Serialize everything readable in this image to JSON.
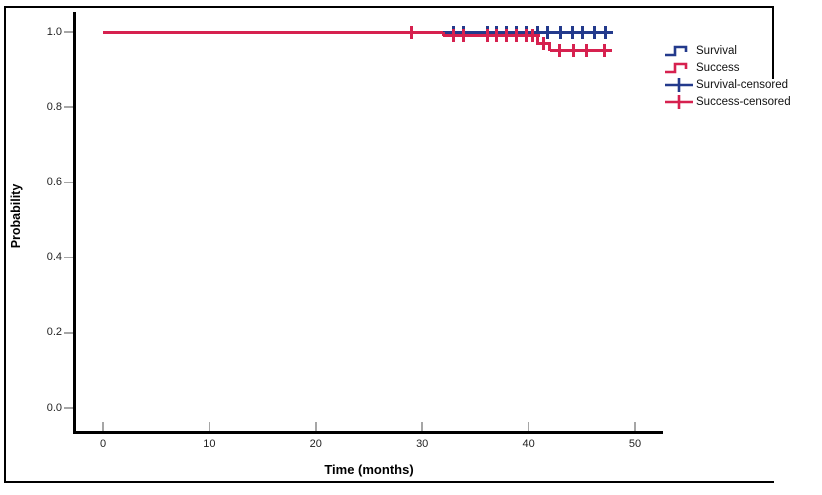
{
  "figure": {
    "background": "#ffffff",
    "frame_color": "#000000"
  },
  "chart_data": {
    "type": "line",
    "subtype": "kaplan-meier-step",
    "title": "",
    "xlabel": "Time (months)",
    "ylabel": "Probability",
    "xlim": [
      0,
      50
    ],
    "ylim": [
      0.0,
      1.0
    ],
    "grid": false,
    "legend_position": "right",
    "x_ticks": [
      "0",
      "10",
      "20",
      "30",
      "40",
      "50"
    ],
    "x_tick_values": [
      0,
      10,
      20,
      30,
      40,
      50
    ],
    "y_ticks": [
      "0.0",
      "0.2",
      "0.4",
      "0.6",
      "0.8",
      "1.0"
    ],
    "y_tick_values": [
      0.0,
      0.2,
      0.4,
      0.6,
      0.8,
      1.0
    ],
    "series": [
      {
        "name": "Survival",
        "color": "#233a8c",
        "points": [
          [
            0,
            1.0
          ],
          [
            47.9,
            1.0
          ]
        ],
        "censored": [
          [
            32.9,
            1.0
          ],
          [
            33.9,
            1.0
          ],
          [
            36.1,
            1.0
          ],
          [
            37.0,
            1.0
          ],
          [
            37.9,
            1.0
          ],
          [
            38.9,
            1.0
          ],
          [
            39.8,
            1.0
          ],
          [
            40.8,
            1.0
          ],
          [
            41.8,
            1.0
          ],
          [
            43.0,
            1.0
          ],
          [
            44.1,
            1.0
          ],
          [
            45.1,
            1.0
          ],
          [
            46.2,
            1.0
          ],
          [
            47.2,
            1.0
          ]
        ]
      },
      {
        "name": "Success",
        "color": "#d6214f",
        "points": [
          [
            0,
            1.0
          ],
          [
            32,
            1.0
          ],
          [
            32,
            0.99
          ],
          [
            40.8,
            0.99
          ],
          [
            40.8,
            0.97
          ],
          [
            42,
            0.97
          ],
          [
            42,
            0.95
          ],
          [
            47.7,
            0.95
          ]
        ],
        "censored": [
          [
            29,
            1.0
          ],
          [
            32.9,
            0.99
          ],
          [
            33.9,
            0.99
          ],
          [
            36.1,
            0.99
          ],
          [
            37.0,
            0.99
          ],
          [
            37.9,
            0.99
          ],
          [
            38.9,
            0.99
          ],
          [
            39.8,
            0.99
          ],
          [
            40.4,
            0.99
          ],
          [
            41.4,
            0.97
          ],
          [
            42.9,
            0.95
          ],
          [
            44.2,
            0.95
          ],
          [
            45.4,
            0.95
          ],
          [
            47.1,
            0.95
          ]
        ]
      }
    ]
  },
  "legend": {
    "items": [
      {
        "label": "Survival",
        "glyph": "step",
        "series": "Survival"
      },
      {
        "label": "Success",
        "glyph": "step",
        "series": "Success"
      },
      {
        "label": "Survival-censored",
        "glyph": "plus",
        "series": "Survival"
      },
      {
        "label": "Success-censored",
        "glyph": "plus",
        "series": "Success"
      }
    ]
  }
}
